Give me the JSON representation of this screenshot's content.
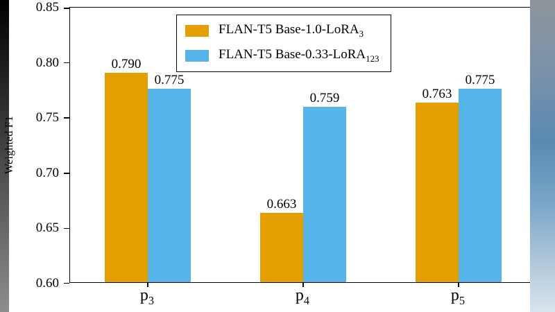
{
  "chart_data": {
    "type": "bar",
    "title": "",
    "xlabel": "",
    "ylabel": "Weighted F1",
    "ylim": [
      0.6,
      0.85
    ],
    "yticks": [
      0.6,
      0.65,
      0.7,
      0.75,
      0.8,
      0.85
    ],
    "grid": false,
    "legend_position": "upper left inside plot",
    "categories": [
      {
        "base": "p",
        "sub": "3"
      },
      {
        "base": "p",
        "sub": "4"
      },
      {
        "base": "p",
        "sub": "5"
      }
    ],
    "series": [
      {
        "name": "FLAN-T5 Base-1.0-LoRA",
        "name_sub": "3",
        "color": "#E69F00",
        "values": [
          0.79,
          0.663,
          0.763
        ],
        "labels": [
          "0.790",
          "0.663",
          "0.763"
        ]
      },
      {
        "name": "FLAN-T5 Base-0.33-LoRA",
        "name_sub": "123",
        "color": "#56B4E9",
        "values": [
          0.775,
          0.759,
          0.775
        ],
        "labels": [
          "0.775",
          "0.759",
          "0.775"
        ]
      }
    ]
  }
}
